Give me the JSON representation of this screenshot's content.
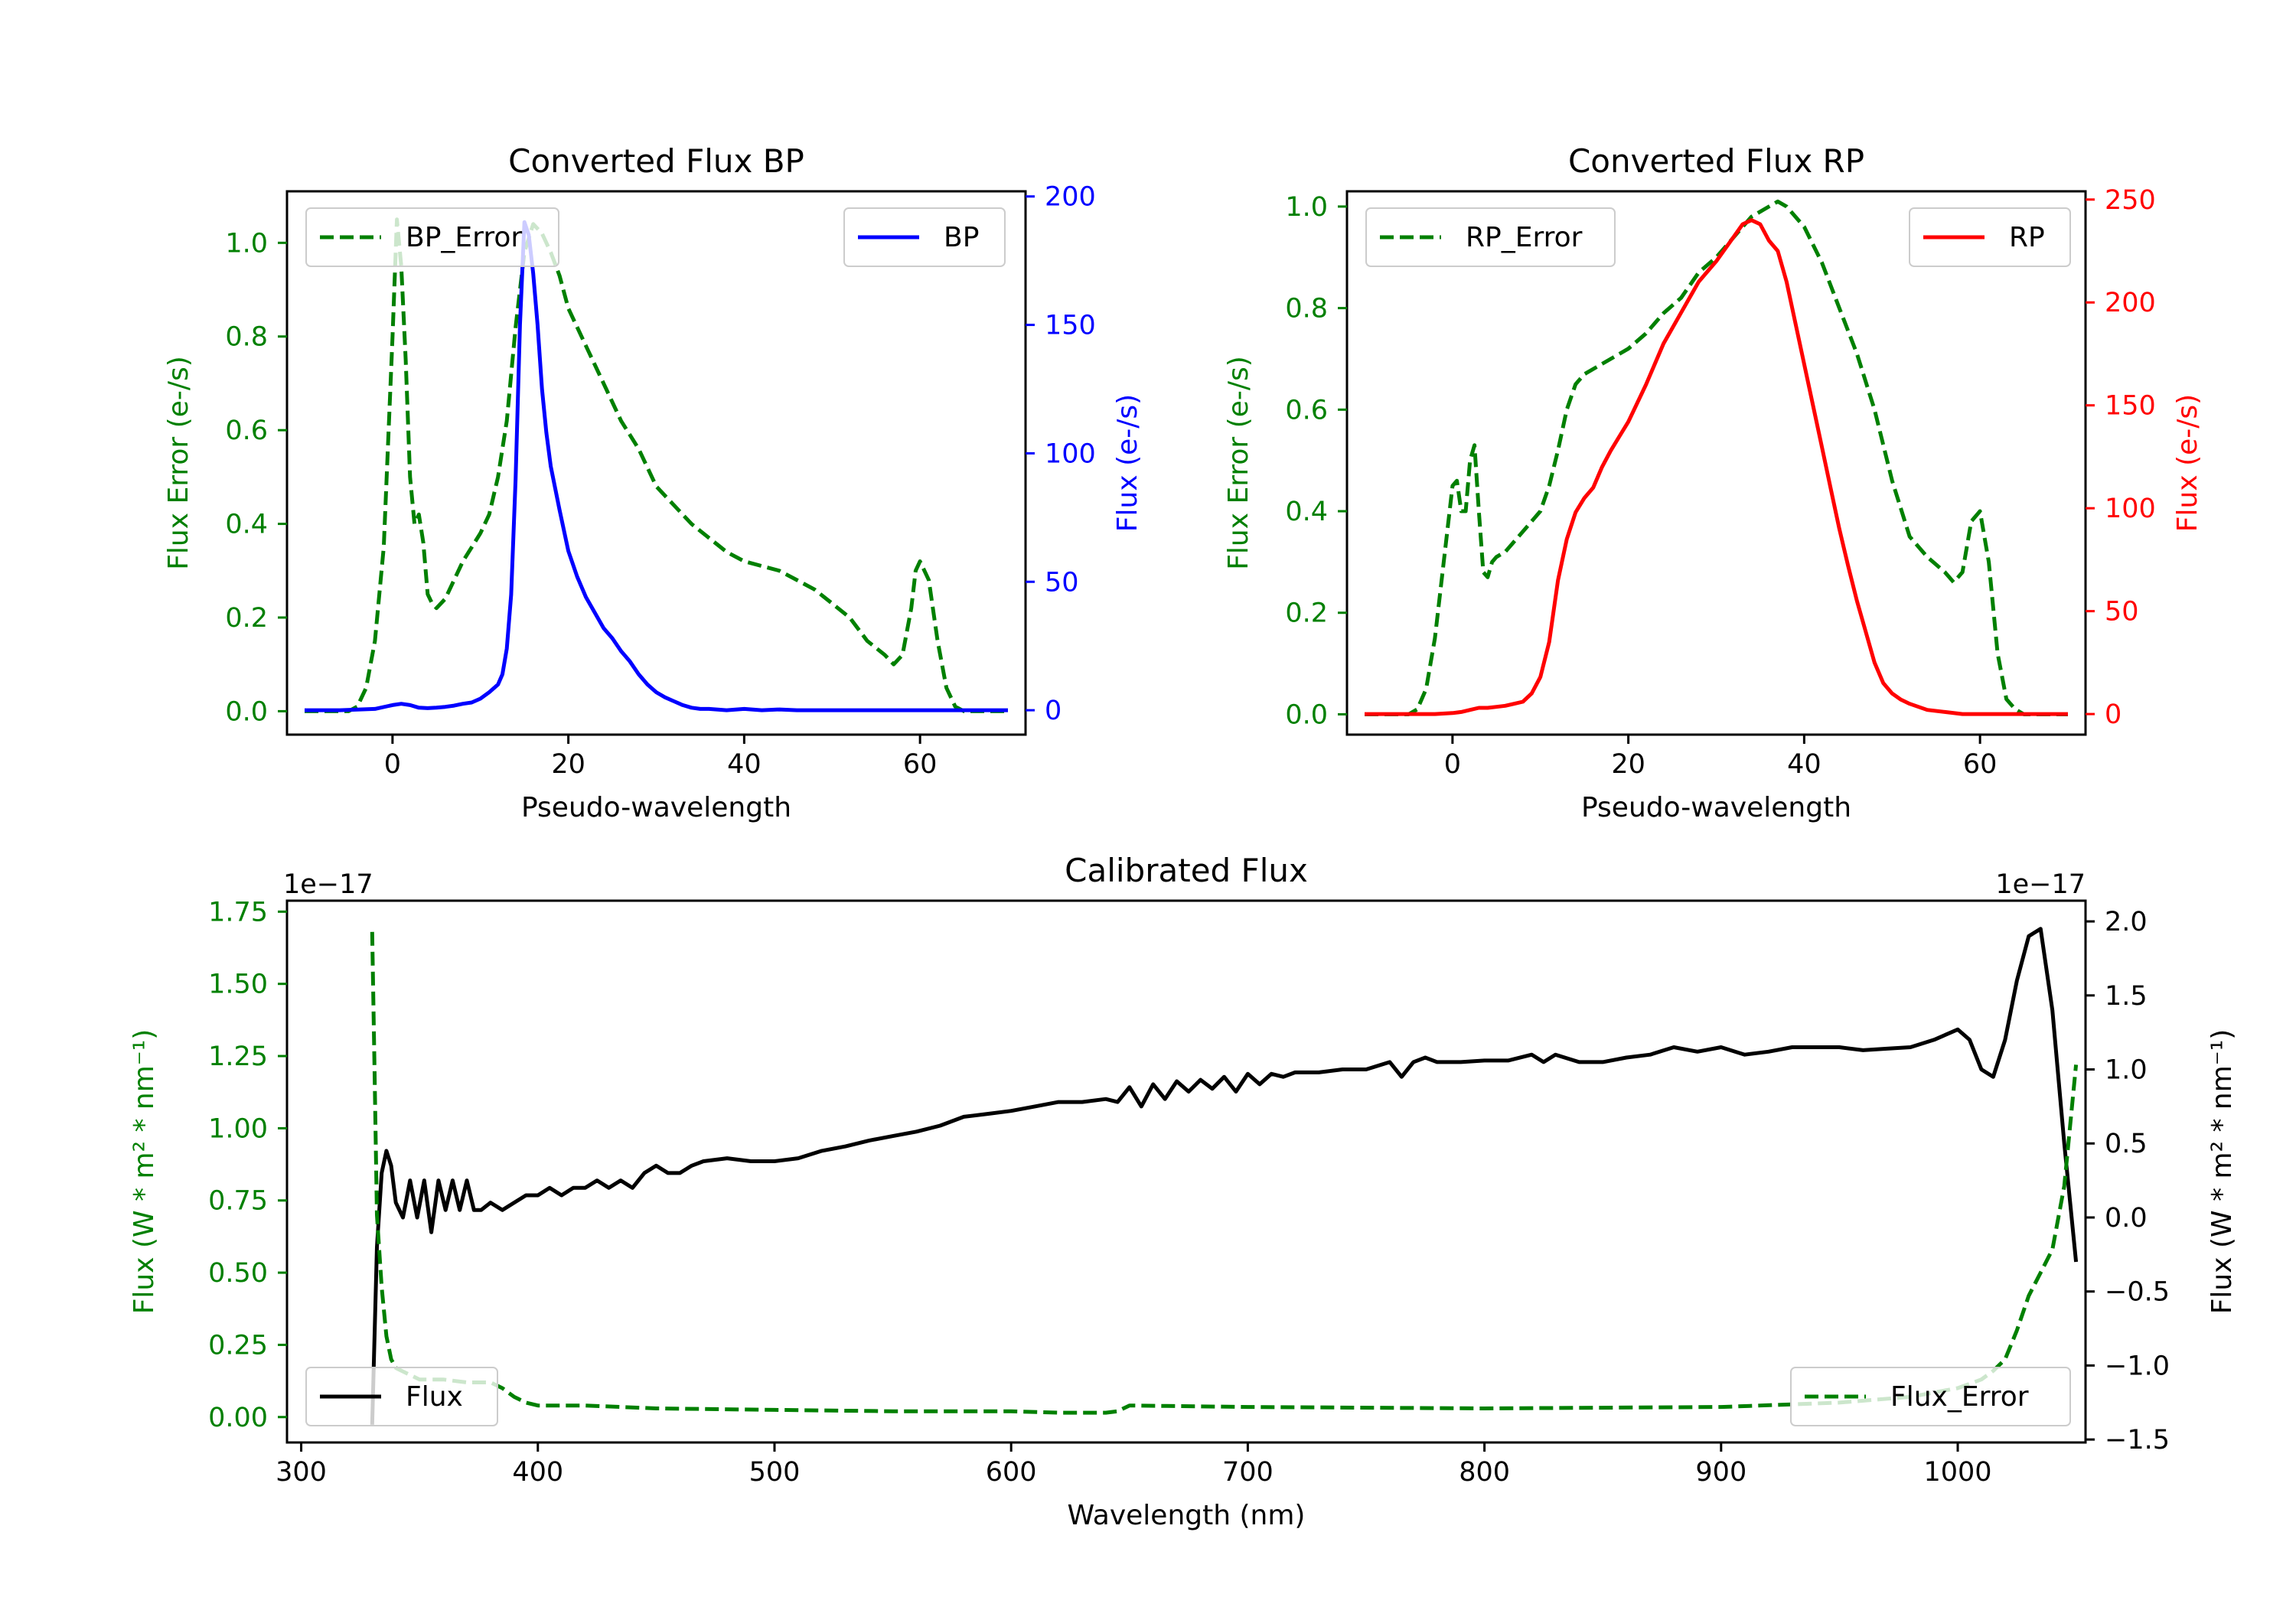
{
  "chart_data": [
    {
      "type": "line",
      "title": "Converted Flux BP",
      "xlabel": "Pseudo-wavelength",
      "ylabel_left": "Flux Error (e-/s)",
      "ylabel_right": "Flux (e-/s)",
      "xlim": [
        -12,
        72
      ],
      "ylim_left": [
        -0.05,
        1.11
      ],
      "ylim_right": [
        -9.5,
        202
      ],
      "xticks": [
        0,
        20,
        40,
        60
      ],
      "yticks_left": [
        0.0,
        0.2,
        0.4,
        0.6,
        0.8,
        1.0
      ],
      "yticks_right": [
        0,
        50,
        100,
        150,
        200
      ],
      "colors": {
        "left": "#008000",
        "right": "#0000ff",
        "axis": "#000000"
      },
      "legend_left": {
        "label": "BP_Error",
        "position": "upper left"
      },
      "legend_right": {
        "label": "BP",
        "position": "upper right"
      },
      "series": [
        {
          "name": "BP_Error",
          "axis": "left",
          "style": "dashed",
          "color": "#008000",
          "x": [
            -10,
            -5,
            -4,
            -3,
            -2,
            -1,
            0,
            0.5,
            1,
            1.5,
            2,
            2.5,
            3,
            3.5,
            4,
            4.5,
            5,
            6,
            7,
            8,
            9,
            10,
            11,
            12,
            13,
            14,
            15,
            16,
            17,
            18,
            19,
            20,
            22,
            24,
            26,
            28,
            30,
            32,
            34,
            36,
            38,
            40,
            42,
            44,
            46,
            48,
            50,
            52,
            54,
            56,
            57,
            58,
            59,
            59.5,
            60,
            61,
            62,
            63,
            64,
            65,
            66,
            70
          ],
          "y": [
            0,
            0,
            0.01,
            0.05,
            0.15,
            0.35,
            0.8,
            1.05,
            0.95,
            0.75,
            0.5,
            0.4,
            0.42,
            0.36,
            0.25,
            0.23,
            0.22,
            0.24,
            0.28,
            0.32,
            0.35,
            0.38,
            0.42,
            0.5,
            0.62,
            0.82,
            0.98,
            1.04,
            1.02,
            0.98,
            0.93,
            0.86,
            0.78,
            0.7,
            0.62,
            0.56,
            0.48,
            0.44,
            0.4,
            0.37,
            0.34,
            0.32,
            0.31,
            0.3,
            0.28,
            0.26,
            0.23,
            0.2,
            0.15,
            0.12,
            0.1,
            0.12,
            0.22,
            0.3,
            0.32,
            0.28,
            0.15,
            0.05,
            0.01,
            0,
            0,
            0
          ]
        },
        {
          "name": "BP",
          "axis": "right",
          "style": "solid",
          "color": "#0000ff",
          "x": [
            -10,
            -6,
            -2,
            0,
            1,
            2,
            3,
            4,
            5,
            6,
            7,
            8,
            9,
            10,
            11,
            12,
            12.5,
            13,
            13.5,
            14,
            14.5,
            15,
            15.5,
            16,
            16.5,
            17,
            17.5,
            18,
            19,
            20,
            21,
            22,
            23,
            24,
            25,
            26,
            27,
            28,
            29,
            30,
            31,
            32,
            33,
            34,
            35,
            36,
            38,
            40,
            42,
            44,
            46,
            48,
            50,
            55,
            60,
            65,
            70
          ],
          "y": [
            0,
            0,
            0.5,
            2,
            2.5,
            2,
            1,
            0.8,
            1,
            1.3,
            1.8,
            2.5,
            3,
            4.5,
            7,
            10,
            14,
            24,
            45,
            90,
            150,
            190,
            185,
            170,
            150,
            125,
            108,
            95,
            78,
            62,
            52,
            44,
            38,
            32,
            28,
            23,
            19,
            14,
            10,
            7,
            5,
            3.5,
            2,
            1,
            0.5,
            0.5,
            0,
            0.5,
            0,
            0.3,
            0,
            0,
            0,
            0,
            0,
            0,
            0
          ]
        }
      ]
    },
    {
      "type": "line",
      "title": "Converted Flux RP",
      "xlabel": "Pseudo-wavelength",
      "ylabel_left": "Flux Error (e-/s)",
      "ylabel_right": "Flux (e-/s)",
      "xlim": [
        -12,
        72
      ],
      "ylim_left": [
        -0.04,
        1.03
      ],
      "ylim_right": [
        -10,
        254
      ],
      "xticks": [
        0,
        20,
        40,
        60
      ],
      "yticks_left": [
        0.0,
        0.2,
        0.4,
        0.6,
        0.8,
        1.0
      ],
      "yticks_right": [
        0,
        50,
        100,
        150,
        200,
        250
      ],
      "colors": {
        "left": "#008000",
        "right": "#ff0000",
        "axis": "#000000"
      },
      "legend_left": {
        "label": "RP_Error",
        "position": "upper left"
      },
      "legend_right": {
        "label": "RP",
        "position": "upper right"
      },
      "series": [
        {
          "name": "RP_Error",
          "axis": "left",
          "style": "dashed",
          "color": "#008000",
          "x": [
            -10,
            -5,
            -4,
            -3,
            -2,
            -1,
            0,
            0.5,
            1,
            1.5,
            2,
            2.5,
            3,
            3.5,
            4,
            4.5,
            5,
            6,
            7,
            8,
            9,
            10,
            11,
            12,
            13,
            14,
            15,
            17,
            20,
            22,
            24,
            26,
            28,
            30,
            32,
            34,
            36,
            37,
            38,
            40,
            42,
            44,
            46,
            48,
            50,
            52,
            54,
            56,
            57,
            58,
            59,
            60,
            61,
            62,
            63,
            64,
            65,
            70
          ],
          "y": [
            0,
            0,
            0.01,
            0.05,
            0.15,
            0.3,
            0.45,
            0.46,
            0.4,
            0.4,
            0.5,
            0.53,
            0.4,
            0.28,
            0.27,
            0.3,
            0.31,
            0.32,
            0.34,
            0.36,
            0.38,
            0.4,
            0.45,
            0.52,
            0.6,
            0.65,
            0.67,
            0.69,
            0.72,
            0.75,
            0.79,
            0.82,
            0.87,
            0.9,
            0.94,
            0.98,
            1.0,
            1.01,
            1.0,
            0.96,
            0.89,
            0.8,
            0.71,
            0.6,
            0.46,
            0.35,
            0.31,
            0.28,
            0.26,
            0.28,
            0.38,
            0.4,
            0.3,
            0.12,
            0.03,
            0.01,
            0,
            0
          ]
        },
        {
          "name": "RP",
          "axis": "right",
          "style": "solid",
          "color": "#ff0000",
          "x": [
            -10,
            -5,
            -2,
            0,
            1,
            2,
            3,
            4,
            5,
            6,
            7,
            8,
            9,
            10,
            11,
            12,
            13,
            14,
            15,
            16,
            17,
            18,
            19,
            20,
            22,
            24,
            26,
            28,
            30,
            32,
            33,
            34,
            35,
            36,
            37,
            38,
            39,
            40,
            41,
            42,
            43,
            44,
            45,
            46,
            47,
            48,
            49,
            50,
            51,
            52,
            54,
            56,
            58,
            60,
            62,
            65,
            70
          ],
          "y": [
            0,
            0,
            0,
            0.5,
            1,
            2,
            3,
            3,
            3.5,
            4,
            5,
            6,
            10,
            18,
            35,
            65,
            85,
            98,
            105,
            110,
            120,
            128,
            135,
            142,
            160,
            180,
            195,
            210,
            220,
            232,
            238,
            240,
            238,
            230,
            225,
            210,
            190,
            170,
            150,
            130,
            110,
            90,
            72,
            55,
            40,
            25,
            15,
            10,
            7,
            5,
            2,
            1,
            0,
            0,
            0,
            0,
            0
          ]
        }
      ]
    },
    {
      "type": "line",
      "title": "Calibrated Flux",
      "xlabel": "Wavelength (nm)",
      "ylabel_left": "Flux (W * m² * nm⁻¹)",
      "ylabel_right": "Flux (W * m² * nm⁻¹)",
      "offset_left": "1e−17",
      "offset_right": "1e−17",
      "xlim": [
        294,
        1054
      ],
      "ylim_left": [
        -0.088,
        1.788
      ],
      "ylim_right": [
        -1.52,
        2.14
      ],
      "xticks": [
        300,
        400,
        500,
        600,
        700,
        800,
        900,
        1000
      ],
      "yticks_left": [
        0.0,
        0.25,
        0.5,
        0.75,
        1.0,
        1.25,
        1.5,
        1.75
      ],
      "yticks_right": [
        -1.5,
        -1.0,
        -0.5,
        0.0,
        0.5,
        1.0,
        1.5,
        2.0
      ],
      "colors": {
        "left": "#008000",
        "right": "#000000",
        "axis": "#000000"
      },
      "legend_left": {
        "label": "Flux",
        "position": "lower left"
      },
      "legend_right": {
        "label": "Flux_Error",
        "position": "lower right"
      },
      "series": [
        {
          "name": "Flux",
          "axis": "right",
          "style": "solid",
          "color": "#000000",
          "x": [
            330,
            332,
            334,
            336,
            338,
            340,
            343,
            346,
            349,
            352,
            355,
            358,
            361,
            364,
            367,
            370,
            373,
            376,
            380,
            385,
            390,
            395,
            400,
            405,
            410,
            415,
            420,
            425,
            430,
            435,
            440,
            445,
            450,
            455,
            460,
            465,
            470,
            480,
            490,
            500,
            510,
            520,
            530,
            540,
            550,
            560,
            570,
            580,
            590,
            600,
            610,
            620,
            630,
            640,
            645,
            650,
            655,
            660,
            665,
            670,
            675,
            680,
            685,
            690,
            695,
            700,
            705,
            710,
            715,
            720,
            730,
            740,
            750,
            760,
            765,
            770,
            775,
            780,
            790,
            800,
            810,
            820,
            825,
            830,
            840,
            850,
            860,
            870,
            880,
            890,
            900,
            910,
            920,
            930,
            940,
            950,
            960,
            970,
            980,
            990,
            1000,
            1005,
            1010,
            1015,
            1020,
            1025,
            1030,
            1035,
            1040,
            1045,
            1050
          ],
          "y": [
            -1.4,
            -0.2,
            0.3,
            0.45,
            0.35,
            0.1,
            0,
            0.25,
            0,
            0.25,
            -0.1,
            0.25,
            0.05,
            0.25,
            0.05,
            0.25,
            0.05,
            0.05,
            0.1,
            0.05,
            0.1,
            0.15,
            0.15,
            0.2,
            0.15,
            0.2,
            0.2,
            0.25,
            0.2,
            0.25,
            0.2,
            0.3,
            0.35,
            0.3,
            0.3,
            0.35,
            0.38,
            0.4,
            0.38,
            0.38,
            0.4,
            0.45,
            0.48,
            0.52,
            0.55,
            0.58,
            0.62,
            0.68,
            0.7,
            0.72,
            0.75,
            0.78,
            0.78,
            0.8,
            0.78,
            0.88,
            0.75,
            0.9,
            0.8,
            0.92,
            0.85,
            0.93,
            0.87,
            0.95,
            0.85,
            0.97,
            0.9,
            0.97,
            0.95,
            0.98,
            0.98,
            1.0,
            1.0,
            1.05,
            0.95,
            1.05,
            1.08,
            1.05,
            1.05,
            1.06,
            1.06,
            1.1,
            1.05,
            1.1,
            1.05,
            1.05,
            1.08,
            1.1,
            1.15,
            1.12,
            1.15,
            1.1,
            1.12,
            1.15,
            1.15,
            1.15,
            1.13,
            1.14,
            1.15,
            1.2,
            1.27,
            1.2,
            1.0,
            0.95,
            1.2,
            1.6,
            1.9,
            1.95,
            1.4,
            0.5,
            -0.3
          ]
        },
        {
          "name": "Flux_Error",
          "axis": "left",
          "style": "dashed",
          "color": "#008000",
          "x": [
            330,
            331,
            332,
            334,
            336,
            338,
            340,
            345,
            350,
            360,
            370,
            380,
            385,
            390,
            395,
            400,
            420,
            450,
            500,
            550,
            600,
            620,
            630,
            640,
            645,
            650,
            700,
            800,
            900,
            950,
            980,
            1000,
            1010,
            1015,
            1020,
            1025,
            1030,
            1035,
            1040,
            1045,
            1050
          ],
          "y": [
            1.68,
            1.2,
            0.7,
            0.45,
            0.28,
            0.2,
            0.17,
            0.15,
            0.13,
            0.13,
            0.12,
            0.12,
            0.1,
            0.07,
            0.05,
            0.04,
            0.04,
            0.03,
            0.025,
            0.02,
            0.02,
            0.015,
            0.015,
            0.015,
            0.02,
            0.04,
            0.035,
            0.03,
            0.035,
            0.05,
            0.07,
            0.1,
            0.13,
            0.16,
            0.2,
            0.3,
            0.42,
            0.5,
            0.58,
            0.8,
            1.22
          ]
        }
      ]
    }
  ]
}
